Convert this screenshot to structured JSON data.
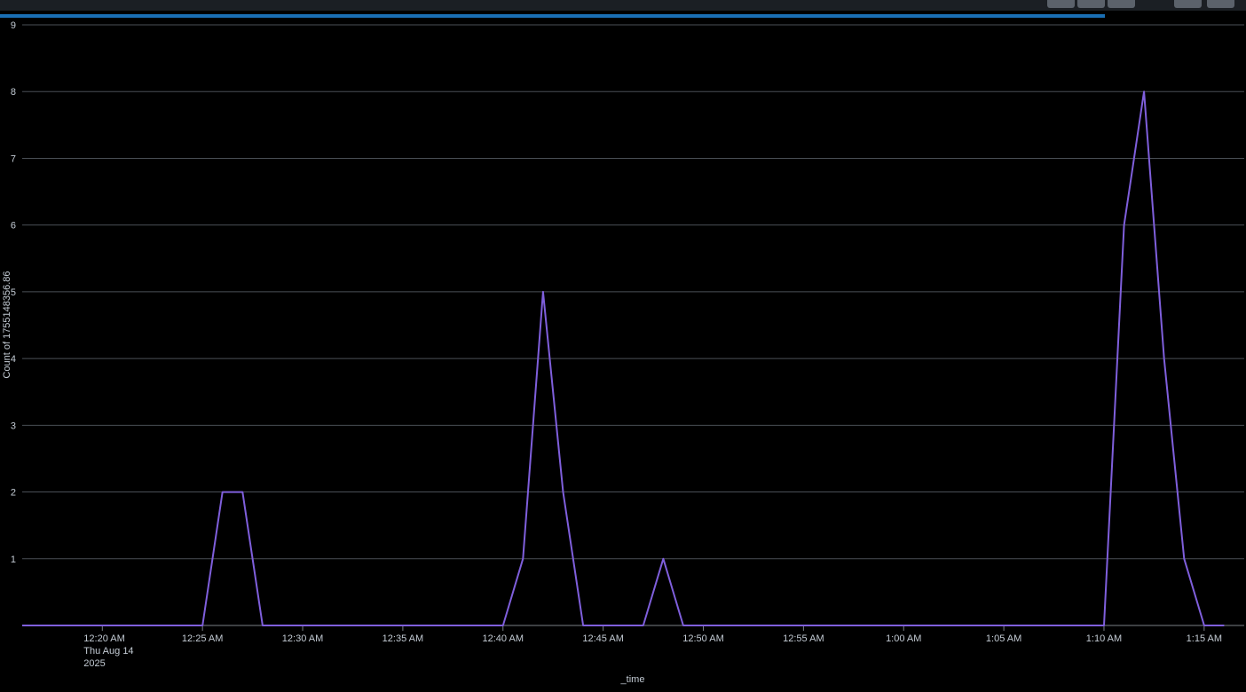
{
  "header": {
    "buttons": [
      {
        "name": "toolbar-button-1"
      },
      {
        "name": "toolbar-button-2"
      },
      {
        "name": "toolbar-button-3"
      },
      {
        "name": "toolbar-button-4"
      },
      {
        "name": "toolbar-button-5"
      }
    ],
    "progress": 0.887
  },
  "chart_data": {
    "type": "line",
    "title": "",
    "xlabel": "_time",
    "ylabel": "Count of 1755148356.86",
    "ylim": [
      0,
      9
    ],
    "yticks": [
      "1",
      "2",
      "3",
      "4",
      "5",
      "6",
      "7",
      "8",
      "9"
    ],
    "xticks": [
      {
        "t": "00:20",
        "label": "12:20 AM",
        "sub1": "Thu Aug 14",
        "sub2": "2025"
      },
      {
        "t": "00:25",
        "label": "12:25 AM"
      },
      {
        "t": "00:30",
        "label": "12:30 AM"
      },
      {
        "t": "00:35",
        "label": "12:35 AM"
      },
      {
        "t": "00:40",
        "label": "12:40 AM"
      },
      {
        "t": "00:45",
        "label": "12:45 AM"
      },
      {
        "t": "00:50",
        "label": "12:50 AM"
      },
      {
        "t": "00:55",
        "label": "12:55 AM"
      },
      {
        "t": "01:00",
        "label": "1:00 AM"
      },
      {
        "t": "01:05",
        "label": "1:05 AM"
      },
      {
        "t": "01:10",
        "label": "1:10 AM"
      },
      {
        "t": "01:15",
        "label": "1:15 AM"
      }
    ],
    "xlim": [
      "00:16",
      "01:17"
    ],
    "grid": true,
    "line_color": "#7f5fdc",
    "series": [
      {
        "x": [
          "00:16",
          "00:17",
          "00:18",
          "00:19",
          "00:20",
          "00:21",
          "00:22",
          "00:23",
          "00:24",
          "00:25",
          "00:26",
          "00:27",
          "00:28",
          "00:29",
          "00:30",
          "00:31",
          "00:32",
          "00:33",
          "00:34",
          "00:35",
          "00:36",
          "00:37",
          "00:38",
          "00:39",
          "00:40",
          "00:41",
          "00:42",
          "00:43",
          "00:44",
          "00:45",
          "00:46",
          "00:47",
          "00:48",
          "00:49",
          "00:50",
          "00:51",
          "00:52",
          "00:53",
          "00:54",
          "00:55",
          "00:56",
          "00:57",
          "00:58",
          "00:59",
          "01:00",
          "01:01",
          "01:02",
          "01:03",
          "01:04",
          "01:05",
          "01:06",
          "01:07",
          "01:08",
          "01:09",
          "01:10",
          "01:11",
          "01:12",
          "01:13",
          "01:14",
          "01:15",
          "01:16"
        ],
        "values": [
          0,
          0,
          0,
          0,
          0,
          0,
          0,
          0,
          0,
          0,
          2,
          2,
          0,
          0,
          0,
          0,
          0,
          0,
          0,
          0,
          0,
          0,
          0,
          0,
          0,
          1,
          5,
          2,
          0,
          0,
          0,
          0,
          1,
          0,
          0,
          0,
          0,
          0,
          0,
          0,
          0,
          0,
          0,
          0,
          0,
          0,
          0,
          0,
          0,
          0,
          0,
          0,
          0,
          0,
          0,
          6,
          8,
          4,
          1,
          0,
          0
        ]
      }
    ]
  }
}
